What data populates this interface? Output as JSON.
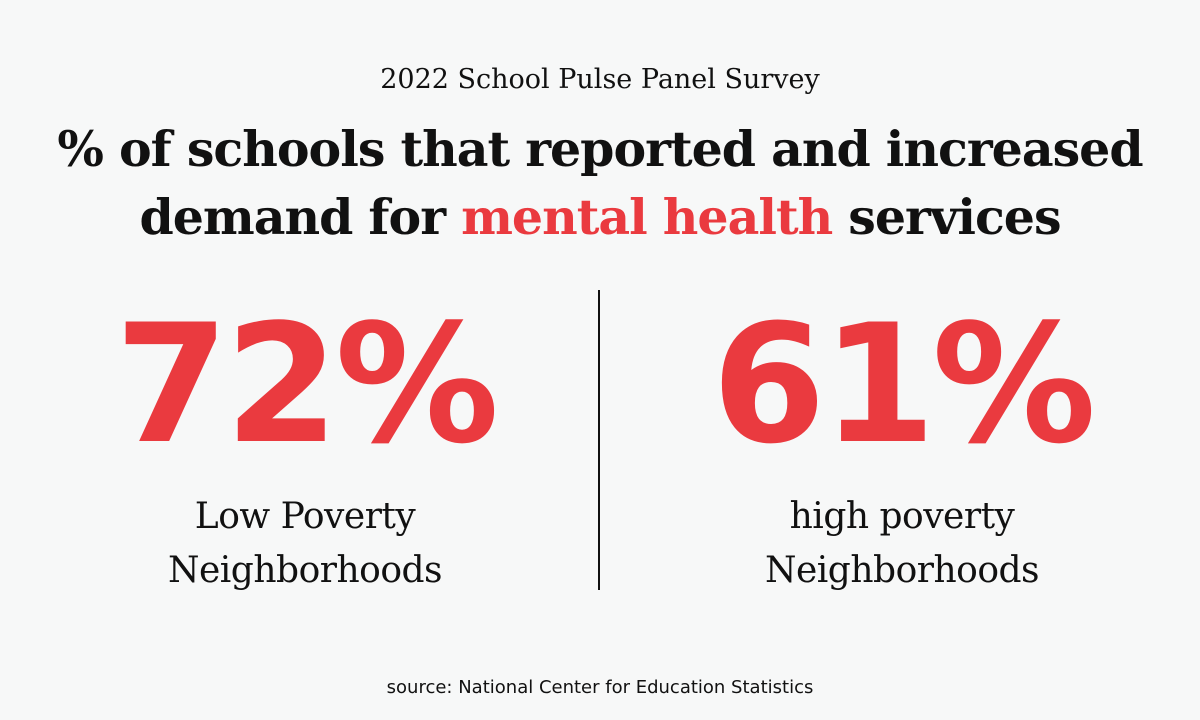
{
  "header": {
    "subtitle": "2022 School Pulse Panel Survey",
    "title_before": "% of schools that reported and increased demand for",
    "title_highlight": "mental health",
    "title_after": "services"
  },
  "stats": [
    {
      "value": "72%",
      "label_line1": "Low Poverty",
      "label_line2": "Neighborhoods"
    },
    {
      "value": "61%",
      "label_line1": "high poverty",
      "label_line2": "Neighborhoods"
    }
  ],
  "footer": {
    "source": "source: National Center for Education Statistics"
  },
  "colors": {
    "accent": "#ea3a3f",
    "text": "#111111",
    "background": "#f7f8f8"
  }
}
